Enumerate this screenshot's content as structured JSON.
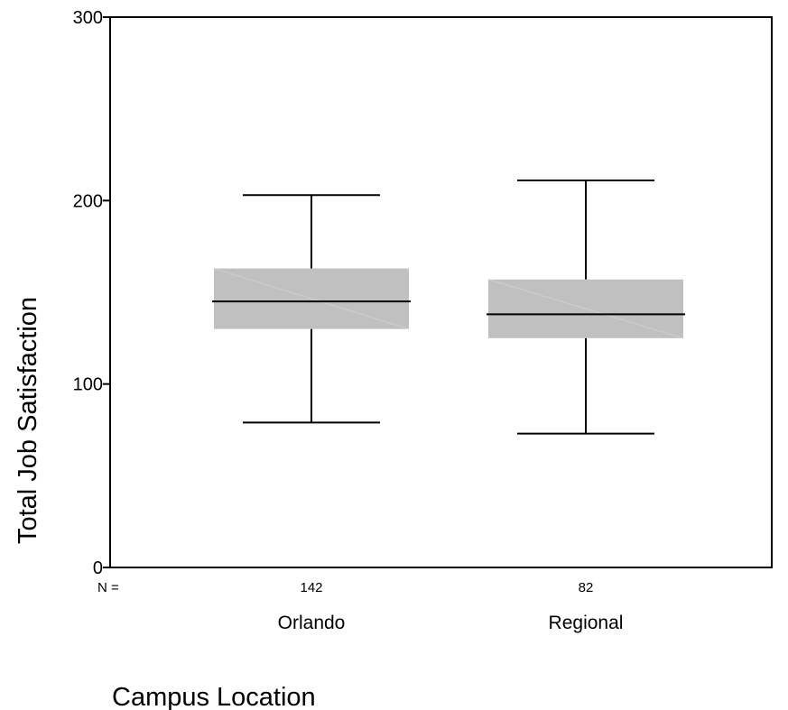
{
  "chart_data": {
    "type": "box",
    "xlabel": "Campus Location",
    "ylabel": "Total Job Satisfaction",
    "ylim": [
      0,
      300
    ],
    "yticks": [
      0,
      100,
      200,
      300
    ],
    "n_prefix": "N =",
    "categories": [
      "Orlando",
      "Regional"
    ],
    "boxes": [
      {
        "category": "Orlando",
        "n": 142,
        "whisker_low": 79,
        "q1": 130,
        "median": 145,
        "q3": 163,
        "whisker_high": 203
      },
      {
        "category": "Regional",
        "n": 82,
        "whisker_low": 73,
        "q1": 125,
        "median": 138,
        "q3": 157,
        "whisker_high": 211
      }
    ],
    "box_color": "#c0c0c0",
    "grid": false
  }
}
